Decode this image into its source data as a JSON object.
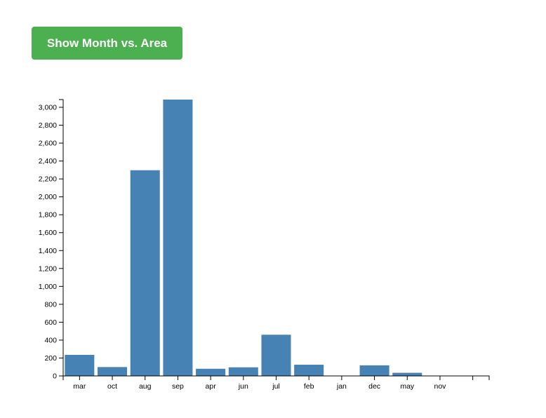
{
  "toolbar": {
    "toggle_label": "Show Month vs. Area"
  },
  "colors": {
    "bar": "#4682b4",
    "button": "#4caf50",
    "axis": "#000000"
  },
  "chart_data": {
    "type": "bar",
    "categories": [
      "mar",
      "oct",
      "aug",
      "sep",
      "apr",
      "jun",
      "jul",
      "feb",
      "jan",
      "dec",
      "may",
      "nov",
      ""
    ],
    "values": [
      235,
      99,
      2297,
      3086,
      80,
      96,
      460,
      125,
      0,
      118,
      35,
      0,
      0
    ],
    "ylim": [
      0,
      3086
    ],
    "yticks": [
      0,
      200,
      400,
      600,
      800,
      1000,
      1200,
      1400,
      1600,
      1800,
      2000,
      2200,
      2400,
      2600,
      2800,
      3000
    ],
    "title": "",
    "xlabel": "",
    "ylabel": "",
    "grid": false
  }
}
